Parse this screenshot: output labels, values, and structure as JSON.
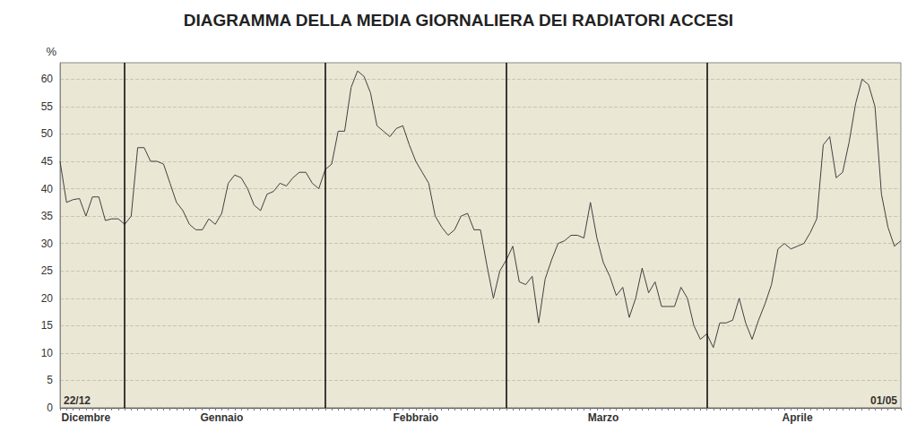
{
  "chart_data": {
    "type": "line",
    "title": "DIAGRAMMA DELLA MEDIA GIORNALIERA DEI RADIATORI ACCESI",
    "y_label": "%",
    "categories": [
      null,
      null,
      null,
      null,
      "Dicembre",
      null,
      null,
      null,
      null,
      null,
      null,
      null,
      null,
      null,
      null,
      null,
      null,
      null,
      null,
      null,
      null,
      null,
      null,
      null,
      null,
      "Gennaio",
      null,
      null,
      null,
      null,
      null,
      null,
      null,
      null,
      null,
      null,
      null,
      null,
      null,
      null,
      null,
      null,
      null,
      null,
      null,
      null,
      null,
      null,
      null,
      null,
      null,
      null,
      null,
      null,
      null,
      "Febbraio",
      null,
      null,
      null,
      null,
      null,
      null,
      null,
      null,
      null,
      null,
      null,
      null,
      null,
      null,
      null,
      null,
      null,
      null,
      null,
      null,
      null,
      null,
      null,
      null,
      null,
      null,
      null,
      null,
      "Marzo",
      null,
      null,
      null,
      null,
      null,
      null,
      null,
      null,
      null,
      null,
      null,
      null,
      null,
      null,
      null,
      null,
      null,
      null,
      null,
      null,
      null,
      null,
      null,
      null,
      null,
      null,
      null,
      null,
      null,
      "Aprile",
      null,
      null,
      null,
      null,
      null,
      null,
      null,
      null,
      null,
      null,
      null,
      null,
      null,
      null,
      null,
      null
    ],
    "values": [
      45,
      37.5,
      38,
      38.2,
      35,
      38.5,
      38.5,
      34.2,
      34.5,
      34.5,
      33.5,
      35,
      47.5,
      47.5,
      45,
      45,
      44.5,
      41,
      37.5,
      36,
      33.5,
      32.5,
      32.5,
      34.5,
      33.5,
      35.5,
      41,
      42.5,
      42,
      40,
      37,
      36,
      39,
      39.5,
      41,
      40.5,
      42,
      43,
      43,
      41,
      40,
      43.5,
      44.5,
      50.5,
      50.5,
      58.5,
      61.5,
      60.5,
      57.5,
      51.5,
      50.5,
      49.5,
      51,
      51.5,
      48,
      45,
      43,
      41,
      35,
      33,
      31.5,
      32.5,
      35,
      35.5,
      32.5,
      32.5,
      26,
      20,
      25,
      27,
      29.5,
      23,
      22.5,
      24,
      15.5,
      23.5,
      27,
      30,
      30.5,
      31.5,
      31.5,
      31,
      37.5,
      31,
      26.5,
      24,
      20.5,
      22,
      16.5,
      20,
      25.5,
      21,
      23,
      18.5,
      18.5,
      18.5,
      22,
      20,
      15,
      12.5,
      13.5,
      11,
      15.5,
      15.5,
      16,
      20,
      15.5,
      12.5,
      16,
      19,
      22.5,
      29,
      30,
      29,
      29.5,
      30,
      32,
      34.5,
      48,
      49.5,
      42,
      43,
      48.5,
      55.5,
      60,
      59,
      55,
      39,
      33,
      29.5,
      30.5
    ],
    "vlines": [
      10,
      41,
      69,
      100
    ],
    "annotations": [
      {
        "text": "22/12",
        "x": 0
      },
      {
        "text": "01/05",
        "x": 130
      }
    ],
    "color": "#404040",
    "ylim": [
      0,
      63
    ],
    "yticks": [
      0,
      5,
      10,
      15,
      20,
      25,
      30,
      35,
      40,
      45,
      50,
      55,
      60
    ],
    "grid": true
  }
}
